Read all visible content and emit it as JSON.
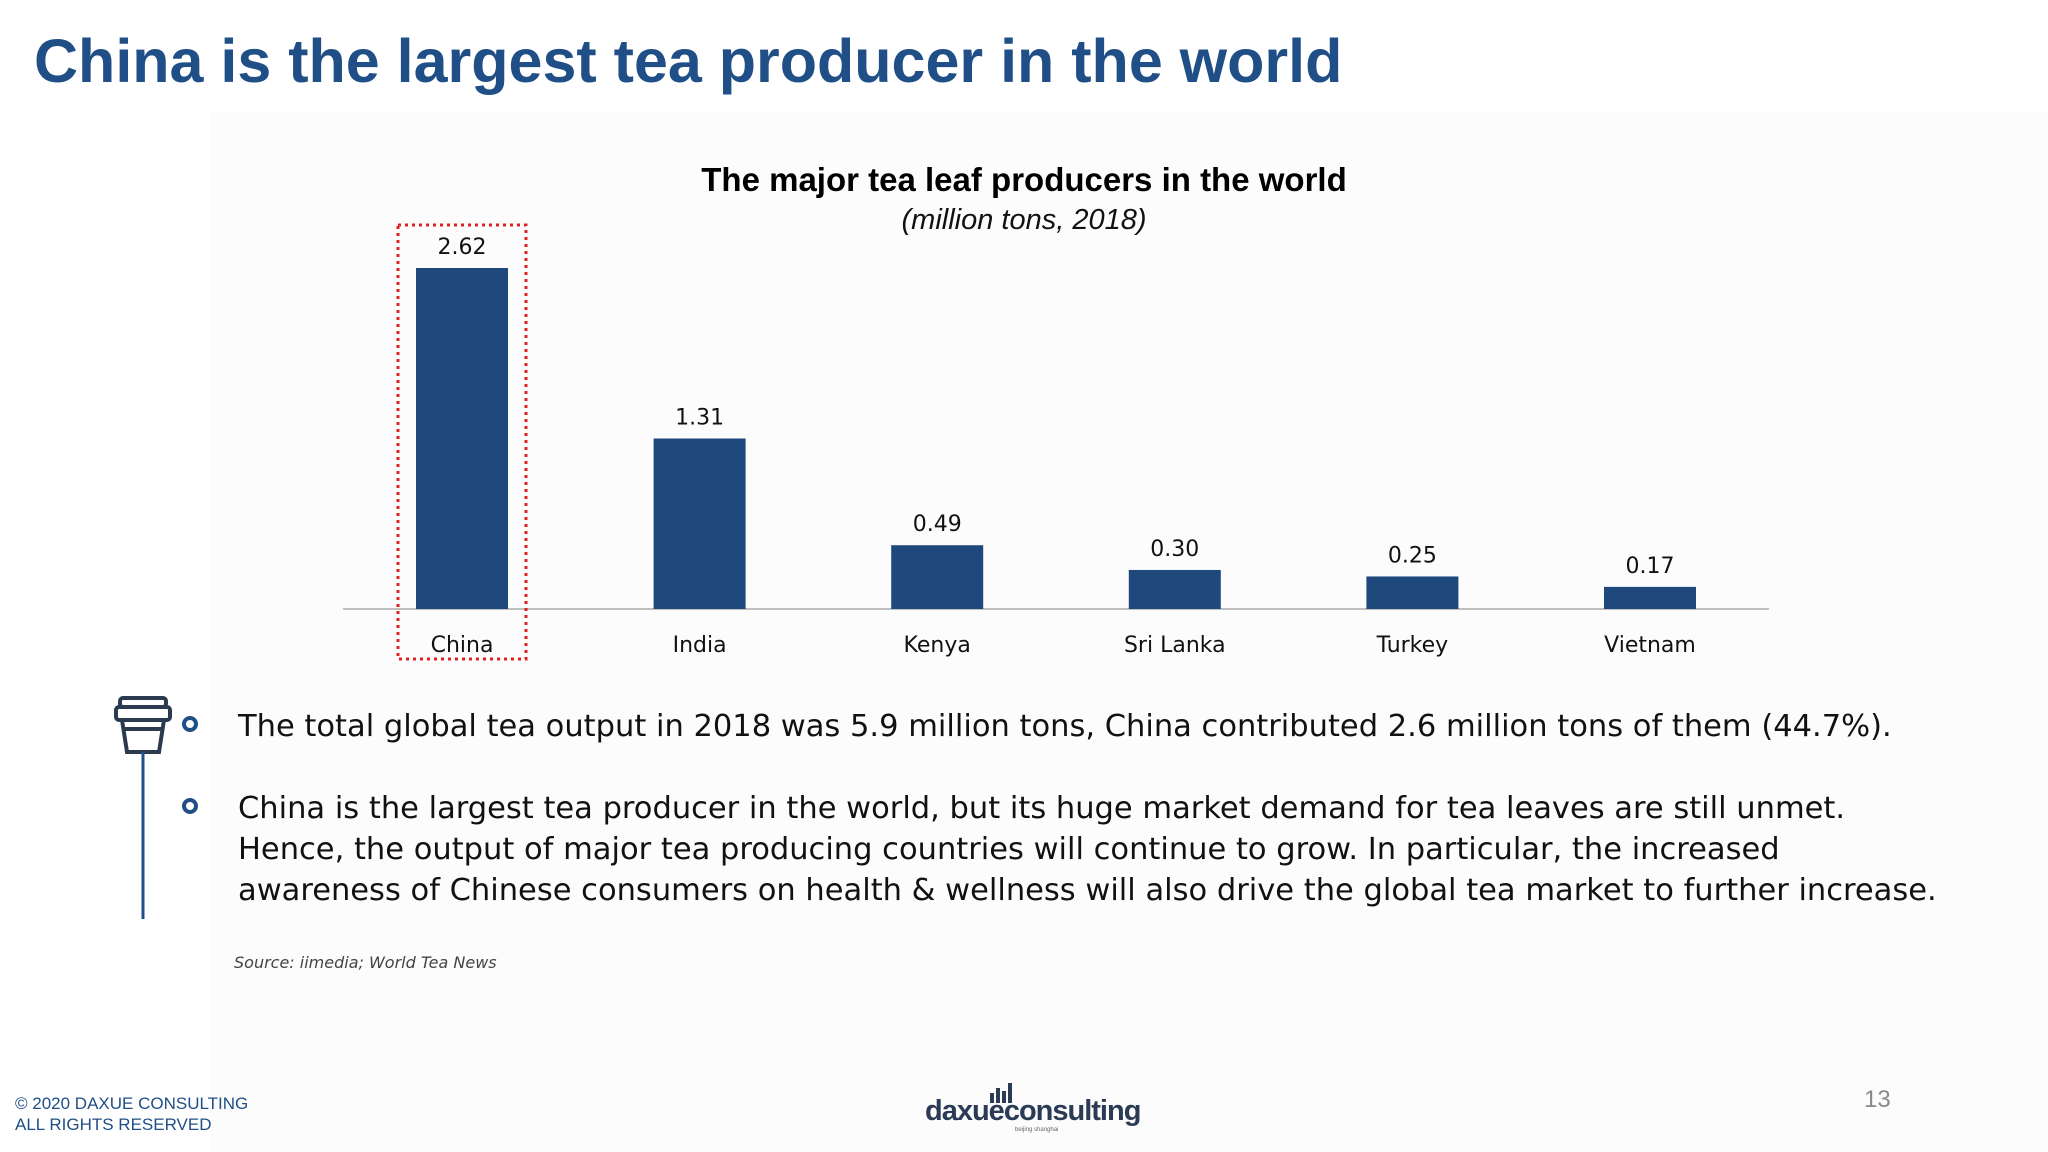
{
  "slide": {
    "title": "China is the largest tea producer in the world",
    "page_number": "13",
    "source": "Source: iimedia; World Tea News",
    "copyright_line1": "© 2020 DAXUE CONSULTING",
    "copyright_line2": "ALL RIGHTS RESERVED",
    "logo": {
      "text": "daxueconsulting",
      "tagline": "beijing shanghai"
    }
  },
  "bullets": [
    "The total global tea output in 2018 was 5.9 million tons, China contributed 2.6 million tons of them (44.7%).",
    "China is the largest tea producer in the world, but its huge market demand for tea leaves are still unmet. Hence, the output of major tea producing countries will continue to grow. In particular, the increased awareness of Chinese consumers on health & wellness will also drive the global tea market to further increase."
  ],
  "icons": {
    "bullet_marker": "circle-icon",
    "side_icon": "tea-cup-icon"
  },
  "colors": {
    "title": "#1f4f86",
    "bar": "#1f497d",
    "highlight": "#e02020"
  },
  "chart_data": {
    "type": "bar",
    "title": "The major tea leaf producers in the world",
    "subtitle": "(million tons, 2018)",
    "xlabel": "",
    "ylabel": "",
    "categories": [
      "China",
      "India",
      "Kenya",
      "Sri Lanka",
      "Turkey",
      "Vietnam"
    ],
    "values": [
      2.62,
      1.31,
      0.49,
      0.3,
      0.25,
      0.17
    ],
    "value_labels": [
      "2.62",
      "1.31",
      "0.49",
      "0.30",
      "0.25",
      "0.17"
    ],
    "ylim": [
      0,
      2.62
    ],
    "grid": false,
    "highlighted_category": "China"
  }
}
